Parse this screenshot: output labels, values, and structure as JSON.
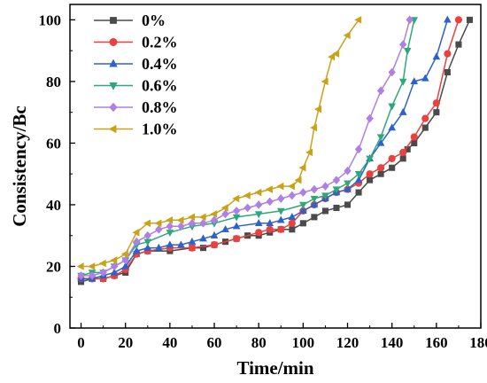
{
  "chart_data": {
    "type": "line",
    "title": "",
    "xlabel": "Time/min",
    "ylabel": "Consistency/Bc",
    "xlim": [
      -5,
      180
    ],
    "ylim": [
      0,
      105
    ],
    "xticks": [
      "0",
      "20",
      "40",
      "60",
      "80",
      "100",
      "120",
      "140",
      "160",
      "180"
    ],
    "yticks": [
      "0",
      "20",
      "40",
      "60",
      "80",
      "100"
    ],
    "grid": false,
    "legend_position": "top-left",
    "series": [
      {
        "name": "0%",
        "color": "#4a4a4a",
        "marker": "square",
        "x": [
          0,
          5,
          10,
          15,
          20,
          25,
          30,
          40,
          50,
          55,
          60,
          65,
          70,
          75,
          80,
          85,
          90,
          95,
          100,
          105,
          110,
          115,
          120,
          125,
          130,
          135,
          140,
          145,
          147,
          150,
          155,
          160,
          165,
          170,
          175
        ],
        "y": [
          15,
          16,
          16,
          17,
          18,
          24,
          25,
          25,
          26,
          26,
          27,
          28,
          29,
          30,
          30,
          31,
          32,
          32,
          34,
          36,
          38,
          39,
          40,
          44,
          48,
          50,
          52,
          55,
          58,
          60,
          65,
          70,
          83,
          92,
          100
        ]
      },
      {
        "name": "0.2%",
        "color": "#e8413f",
        "marker": "circle",
        "x": [
          0,
          5,
          10,
          15,
          20,
          25,
          30,
          40,
          50,
          60,
          70,
          80,
          85,
          90,
          95,
          100,
          105,
          110,
          115,
          120,
          125,
          130,
          135,
          140,
          145,
          150,
          155,
          160,
          165,
          170
        ],
        "y": [
          16,
          16,
          16,
          17,
          19,
          24,
          25,
          26,
          26,
          27,
          29,
          31,
          32,
          32,
          34,
          38,
          40,
          42,
          44,
          45,
          47,
          50,
          52,
          55,
          57,
          62,
          68,
          73,
          89,
          100
        ]
      },
      {
        "name": "0.4%",
        "color": "#2c62c9",
        "marker": "triangle-up",
        "x": [
          0,
          5,
          10,
          15,
          20,
          25,
          30,
          35,
          40,
          45,
          50,
          55,
          60,
          65,
          70,
          80,
          85,
          90,
          95,
          100,
          105,
          110,
          115,
          120,
          125,
          130,
          135,
          140,
          145,
          150,
          155,
          160,
          165
        ],
        "y": [
          16,
          16,
          17,
          18,
          20,
          25,
          26,
          26,
          27,
          27,
          28,
          29,
          30,
          32,
          33,
          34,
          34,
          35,
          36,
          38,
          40,
          42,
          44,
          45,
          48,
          55,
          60,
          65,
          70,
          80,
          81,
          88,
          100
        ]
      },
      {
        "name": "0.6%",
        "color": "#2ea87a",
        "marker": "triangle-down",
        "x": [
          0,
          5,
          10,
          15,
          20,
          25,
          30,
          40,
          50,
          60,
          70,
          80,
          90,
          100,
          105,
          110,
          115,
          120,
          125,
          130,
          135,
          140,
          145,
          147,
          150
        ],
        "y": [
          17,
          18,
          18,
          20,
          22,
          27,
          28,
          31,
          33,
          34,
          36,
          37,
          38,
          40,
          42,
          43,
          45,
          47,
          50,
          55,
          62,
          72,
          80,
          90,
          100
        ]
      },
      {
        "name": "0.8%",
        "color": "#b07fe3",
        "marker": "diamond",
        "x": [
          0,
          5,
          10,
          15,
          20,
          25,
          30,
          35,
          40,
          45,
          50,
          55,
          60,
          65,
          70,
          75,
          80,
          85,
          90,
          95,
          100,
          105,
          110,
          115,
          120,
          125,
          130,
          135,
          140,
          145,
          148
        ],
        "y": [
          17,
          17,
          18,
          20,
          22,
          28,
          30,
          32,
          33,
          33,
          34,
          34,
          35,
          37,
          38,
          39,
          40,
          41,
          42,
          43,
          44,
          45,
          46,
          48,
          51,
          58,
          68,
          77,
          83,
          92,
          100
        ]
      },
      {
        "name": "1.0%",
        "color": "#c9a217",
        "marker": "triangle-left",
        "x": [
          0,
          5,
          10,
          15,
          20,
          25,
          30,
          35,
          40,
          45,
          50,
          55,
          60,
          65,
          70,
          75,
          80,
          85,
          90,
          95,
          98,
          100,
          103,
          105,
          107,
          110,
          113,
          115,
          120,
          125
        ],
        "y": [
          20,
          20,
          21,
          22,
          24,
          31,
          34,
          34,
          35,
          35,
          36,
          36,
          37,
          39,
          42,
          43,
          44,
          45,
          46,
          46,
          48,
          52,
          57,
          65,
          71,
          80,
          88,
          89,
          95,
          100
        ]
      }
    ]
  }
}
